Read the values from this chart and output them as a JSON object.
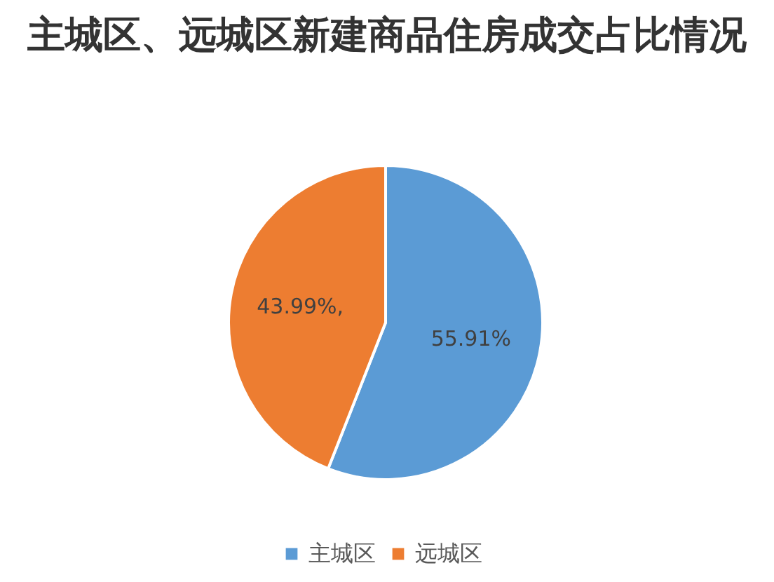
{
  "chart_data": {
    "type": "pie",
    "title": "主城区、远城区新建商品住房成交占比情况",
    "categories": [
      "主城区",
      "远城区"
    ],
    "values": [
      55.91,
      43.99
    ],
    "colors": [
      "#5b9bd5",
      "#ed7d31"
    ],
    "value_labels": [
      "55.91%",
      "43.99%,"
    ],
    "legend": "bottom"
  }
}
